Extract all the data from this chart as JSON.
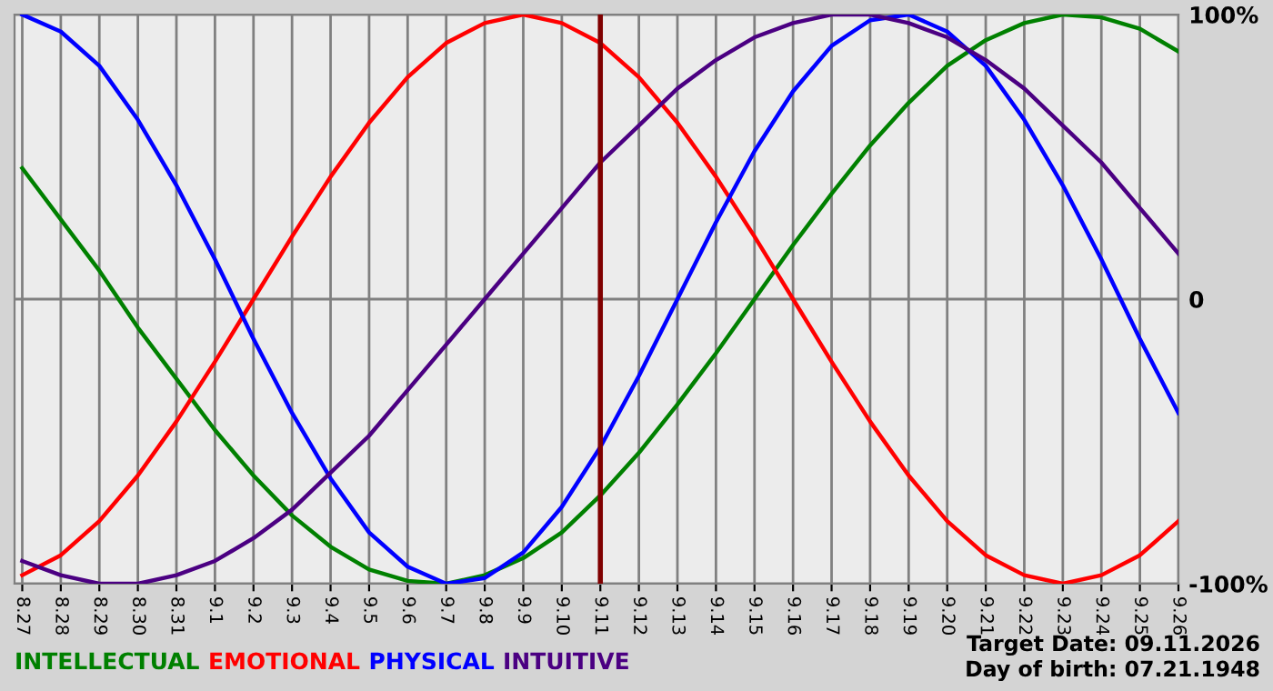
{
  "chart_data": {
    "type": "line",
    "categories": [
      "8.27",
      "8.28",
      "8.29",
      "8.30",
      "8.31",
      "9.1",
      "9.2",
      "9.3",
      "9.4",
      "9.5",
      "9.6",
      "9.7",
      "9.8",
      "9.9",
      "9.10",
      "9.11",
      "9.12",
      "9.13",
      "9.14",
      "9.15",
      "9.16",
      "9.17",
      "9.18",
      "9.19",
      "9.20",
      "9.21",
      "9.22",
      "9.23",
      "9.24",
      "9.25",
      "9.26"
    ],
    "series": [
      {
        "name": "INTELLECTUAL",
        "color": "#008000",
        "values": [
          46,
          28,
          10,
          -10,
          -28,
          -46,
          -62,
          -76,
          -87,
          -95,
          -99,
          -100,
          -97,
          -91,
          -82,
          -69,
          -54,
          -37,
          -19,
          0,
          19,
          37,
          54,
          69,
          82,
          91,
          97,
          100,
          99,
          95,
          87
        ]
      },
      {
        "name": "EMOTIONAL",
        "color": "#ff0000",
        "values": [
          -97,
          -90,
          -78,
          -62,
          -43,
          -22,
          0,
          22,
          43,
          62,
          78,
          90,
          97,
          100,
          97,
          90,
          78,
          62,
          43,
          22,
          0,
          -22,
          -43,
          -62,
          -78,
          -90,
          -97,
          -100,
          -97,
          -90,
          -78
        ]
      },
      {
        "name": "PHYSICAL",
        "color": "#0000ff",
        "values": [
          100,
          94,
          82,
          63,
          40,
          14,
          -14,
          -40,
          -63,
          -82,
          -94,
          -100,
          -98,
          -89,
          -73,
          -52,
          -27,
          0,
          27,
          52,
          73,
          89,
          98,
          100,
          94,
          82,
          63,
          40,
          14,
          -14,
          -40
        ]
      },
      {
        "name": "INTUITIVE",
        "color": "#4b0082",
        "values": [
          -92,
          -97,
          -100,
          -100,
          -97,
          -92,
          -84,
          -74,
          -61,
          -48,
          -32,
          -16,
          0,
          16,
          32,
          48,
          61,
          74,
          84,
          92,
          97,
          100,
          100,
          97,
          92,
          84,
          74,
          61,
          48,
          32,
          16
        ]
      }
    ],
    "ylim": [
      -100,
      100
    ],
    "yticks": [
      {
        "value": 100,
        "label": "100%"
      },
      0,
      {
        "value": -100,
        "label": "-100%"
      }
    ],
    "grid": true,
    "legend": "bottom",
    "marker": "none",
    "line_style": "solid",
    "ref_lines": [
      {
        "axis": "x",
        "value": "9.11",
        "color": "#800000"
      }
    ],
    "annotations": [
      "Target Date: 09.11.2026",
      "Day of birth: 07.21.1948"
    ]
  }
}
